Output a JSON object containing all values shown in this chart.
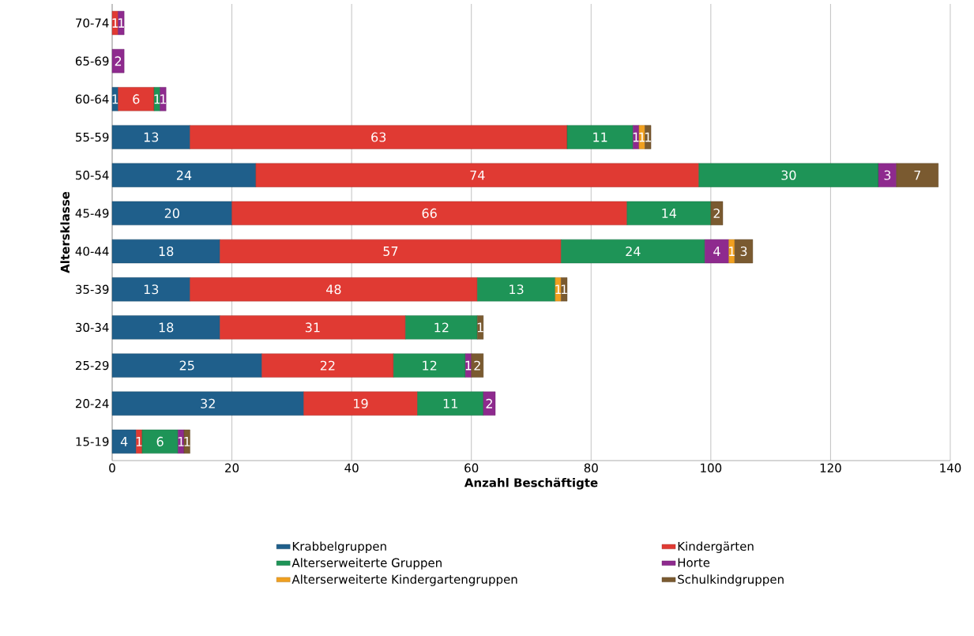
{
  "chart_data": {
    "type": "bar",
    "orientation": "horizontal",
    "stacked": true,
    "xlabel": "Anzahl Beschäftigte",
    "ylabel": "Altersklasse",
    "categories": [
      "70-74",
      "65-69",
      "60-64",
      "55-59",
      "50-54",
      "45-49",
      "40-44",
      "35-39",
      "30-34",
      "25-29",
      "20-24",
      "15-19"
    ],
    "series": [
      {
        "name": "Krabbelgruppen",
        "color": "#1f5f8b",
        "values": [
          null,
          null,
          1,
          13,
          24,
          20,
          18,
          13,
          18,
          25,
          32,
          4
        ]
      },
      {
        "name": "Kindergärten",
        "color": "#e03a33",
        "values": [
          1,
          null,
          6,
          63,
          74,
          66,
          57,
          48,
          31,
          22,
          19,
          1
        ]
      },
      {
        "name": "Alterserweiterte Gruppen",
        "color": "#1e9457",
        "values": [
          null,
          null,
          1,
          11,
          30,
          14,
          24,
          13,
          12,
          12,
          11,
          6
        ]
      },
      {
        "name": "Horte",
        "color": "#8e2a8e",
        "values": [
          1,
          2,
          1,
          1,
          3,
          null,
          4,
          null,
          null,
          1,
          2,
          1
        ]
      },
      {
        "name": "Alterserweiterte Kindergartengruppen",
        "color": "#f0a020",
        "values": [
          null,
          null,
          null,
          1,
          null,
          null,
          1,
          1,
          null,
          null,
          null,
          null
        ]
      },
      {
        "name": "Schulkindgruppen",
        "color": "#7a5a30",
        "values": [
          null,
          null,
          null,
          1,
          7,
          2,
          3,
          1,
          1,
          2,
          null,
          1
        ]
      }
    ],
    "xlim": [
      0,
      140
    ],
    "xticks": [
      0,
      20,
      40,
      60,
      80,
      100,
      120,
      140
    ],
    "grid": "x",
    "legend": "bottom",
    "data_labels": true
  }
}
